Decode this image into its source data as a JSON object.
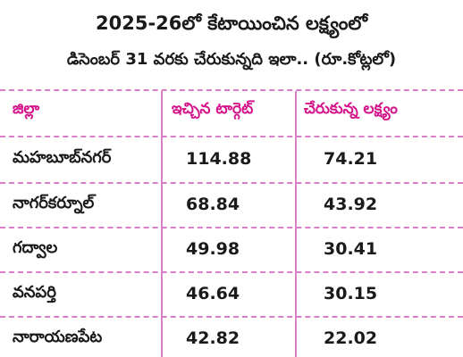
{
  "title_line1": "2025-26లో కేటాయించిన లక్ష్యంలో",
  "title_line2": "డిసెంబర్ 31 వరకు చేరుకున్నది ఇలా.. (రూ.కోట్లలో)",
  "table": {
    "headers": [
      "జిల్లా",
      "ఇచ్చిన టార్గెట్",
      "చేరుకున్న లక్ష్యం"
    ],
    "rows": [
      {
        "district": "మహబూబ్‌నగర్",
        "target": "114.88",
        "achieved": "74.21"
      },
      {
        "district": "నాగర్‌కర్నూల్",
        "target": "68.84",
        "achieved": "43.92"
      },
      {
        "district": "గద్వాల",
        "target": "49.98",
        "achieved": "30.41"
      },
      {
        "district": "వనపర్తి",
        "target": "46.64",
        "achieved": "30.15"
      },
      {
        "district": "నారాయణపేట",
        "target": "42.82",
        "achieved": "22.02"
      }
    ]
  },
  "colors": {
    "header_text": "#d4148b",
    "rule": "#d77fc6"
  }
}
